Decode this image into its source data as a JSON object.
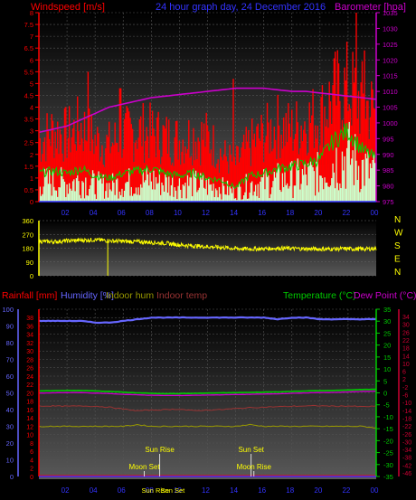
{
  "header": {
    "left": "Windspeed [m/s]",
    "center": "24 hour graph day, 24 December 2016",
    "right": "Barometer [hpa]"
  },
  "colors": {
    "wind": "#ff0000",
    "gust": "#ff0000",
    "avg_wind": "#00cc00",
    "barometer": "#cc00cc",
    "direction": "#ffff00",
    "rainfall": "#ff0000",
    "humidity": "#6666ff",
    "indoor_hum": "#999900",
    "indoor_temp": "#993333",
    "temperature": "#00cc00",
    "dew_point": "#cc00cc",
    "axis_right_temp": "#00cc00",
    "axis_right_dew": "#cc0033",
    "sun_moon_text": "#ffff00"
  },
  "chart_data": [
    {
      "type": "area",
      "id": "wind",
      "x_ticks": [
        "02",
        "04",
        "06",
        "08",
        "10",
        "12",
        "14",
        "16",
        "18",
        "20",
        "22",
        "00"
      ],
      "y_left_ticks": [
        "0",
        "0.5",
        "1",
        "1.5",
        "2",
        "2.5",
        "3",
        "3.5",
        "4",
        "4.5",
        "5",
        "5.5",
        "6",
        "6.5",
        "7",
        "7.5",
        "8"
      ],
      "y_left_range": [
        0,
        8
      ],
      "y_right_ticks": [
        "975",
        "980",
        "985",
        "990",
        "995",
        "1000",
        "1005",
        "1010",
        "1015",
        "1020",
        "1025",
        "1030",
        "1035"
      ],
      "y_right_range": [
        975,
        1035
      ],
      "gust_hourly": [
        2.5,
        3.0,
        2.8,
        3.2,
        2.6,
        2.4,
        2.8,
        3.0,
        2.9,
        2.7,
        2.6,
        2.8,
        2.7,
        2.0,
        1.6,
        2.4,
        2.8,
        3.2,
        3.0,
        3.4,
        3.6,
        4.5,
        4.8,
        4.2,
        3.8
      ],
      "gust_peaks": [
        [
          3.5,
          5.5
        ],
        [
          5.8,
          4.8
        ],
        [
          13.8,
          5.2
        ],
        [
          22.6,
          8.0
        ],
        [
          23.2,
          6.4
        ]
      ],
      "avg_hourly": [
        1.2,
        1.3,
        1.2,
        1.4,
        1.1,
        1.0,
        1.2,
        1.3,
        1.4,
        1.2,
        1.1,
        1.2,
        1.0,
        0.9,
        0.6,
        1.1,
        1.2,
        1.4,
        1.5,
        1.6,
        1.8,
        2.6,
        3.0,
        2.2,
        1.8
      ],
      "barometer_hourly": [
        997,
        998,
        999,
        1001,
        1003,
        1005,
        1006,
        1007,
        1008,
        1008.5,
        1009,
        1009.5,
        1010,
        1010.5,
        1011,
        1011,
        1011,
        1010.5,
        1010,
        1010,
        1009.5,
        1009,
        1008.5,
        1008,
        1007.5
      ]
    },
    {
      "type": "line",
      "id": "direction",
      "y_ticks": [
        "0",
        "90",
        "180",
        "270",
        "360"
      ],
      "y_range": [
        0,
        360
      ],
      "compass": [
        "N",
        "W",
        "S",
        "E",
        "N"
      ],
      "dir_hourly": [
        225,
        222,
        228,
        232,
        235,
        228,
        225,
        222,
        218,
        212,
        202,
        195,
        190,
        185,
        178,
        175,
        176,
        180,
        178,
        176,
        174,
        175,
        176,
        174,
        178
      ]
    },
    {
      "type": "line",
      "id": "temperature",
      "legend": [
        "Rainfall [mm]",
        "Humidity [%]",
        "Indoor hum",
        "Indoor temp",
        "Temperature (°C)",
        "Dew Point (°C)"
      ],
      "y_left_ticks": [
        "0",
        "5",
        "10",
        "15",
        "20",
        "25",
        "30",
        "35",
        "40",
        "45",
        "50",
        "55",
        "60",
        "65",
        "70",
        "75",
        "80",
        "85",
        "90",
        "95",
        "100"
      ],
      "y_mid_ticks": [
        "0",
        "2",
        "4",
        "6",
        "8",
        "10",
        "12",
        "14",
        "16",
        "18",
        "20",
        "22",
        "24",
        "26",
        "28",
        "30",
        "32",
        "34",
        "36",
        "38"
      ],
      "y_temp_ticks": [
        "35",
        "30",
        "25",
        "20",
        "15",
        "10",
        "5",
        "0",
        "-5",
        "-10",
        "-15",
        "-20",
        "-25",
        "-30",
        "-35"
      ],
      "y_temp_range": [
        -35,
        35
      ],
      "y_dew_ticks": [
        "34",
        "30",
        "26",
        "22",
        "18",
        "14",
        "10",
        "6",
        "2",
        "-2",
        "-6",
        "-10",
        "-14",
        "-18",
        "-22",
        "-26",
        "-30",
        "-34",
        "-38",
        "-42",
        "-46"
      ],
      "humidity_hourly": [
        93,
        93,
        93,
        93,
        92,
        92,
        93,
        94,
        95,
        95,
        95,
        95,
        95,
        95,
        95,
        95,
        95,
        94,
        95,
        95,
        94,
        94,
        94,
        94,
        94
      ],
      "temperature_hourly": [
        0.8,
        0.9,
        1.0,
        1.0,
        0.8,
        0.6,
        0.3,
        0.0,
        -0.2,
        -0.3,
        -0.3,
        -0.2,
        -0.1,
        0.0,
        0.1,
        0.2,
        0.3,
        0.4,
        0.6,
        0.8,
        0.9,
        1.0,
        1.2,
        1.4,
        1.5
      ],
      "dewpoint_hourly": [
        -0.1,
        0.0,
        0.1,
        0.1,
        -0.1,
        -0.3,
        -0.6,
        -0.8,
        -1.0,
        -1.1,
        -1.1,
        -1.0,
        -0.9,
        -0.8,
        -0.7,
        -0.6,
        -0.5,
        -0.4,
        -0.2,
        0.0,
        0.1,
        0.2,
        0.4,
        0.6,
        0.7
      ],
      "indoor_temp_hourly": [
        -5.5,
        -5.5,
        -5.6,
        -5.5,
        -5.6,
        -6.0,
        -6.8,
        -7.5,
        -7.2,
        -7.0,
        -6.8,
        -7.5,
        -7.2,
        -7.0,
        -6.6,
        -6.2,
        -6.0,
        -5.8,
        -5.6,
        -5.5,
        -5.4,
        -5.6,
        -5.5,
        -5.8,
        -5.6
      ],
      "indoor_hum_hourly": [
        30,
        30,
        30,
        30,
        30,
        30,
        30,
        31,
        30,
        30,
        30,
        30,
        30,
        30,
        30,
        31,
        30,
        30,
        30,
        30,
        30,
        30,
        30,
        30,
        29
      ],
      "rainfall_hourly": [
        0.2,
        0.2,
        0.2,
        0.2,
        0.2,
        0.2,
        0.2,
        0.2,
        0.2,
        0.2,
        0.2,
        0.2,
        0.2,
        0.2,
        0.2,
        0.2,
        0.2,
        0.2,
        0.2,
        0.2,
        0.2,
        0.2,
        0.2,
        0.2,
        0.2
      ],
      "annotations": [
        {
          "text": "Moon Set",
          "hour": 7.5,
          "row": 2
        },
        {
          "text": "Sun Rise",
          "hour": 8.6,
          "row": 1
        },
        {
          "text": "Sun Set",
          "hour": 15.1,
          "row": 1
        },
        {
          "text": "Moon Rise",
          "hour": 15.3,
          "row": 2
        },
        {
          "text": "Sun Rise",
          "hour": 8.8,
          "row": 3
        },
        {
          "text": "Sun Set",
          "hour": 9.0,
          "row": 3
        }
      ],
      "x_ticks": [
        "02",
        "04",
        "06",
        "08",
        "10",
        "12",
        "14",
        "16",
        "18",
        "20",
        "22",
        "00"
      ]
    }
  ]
}
